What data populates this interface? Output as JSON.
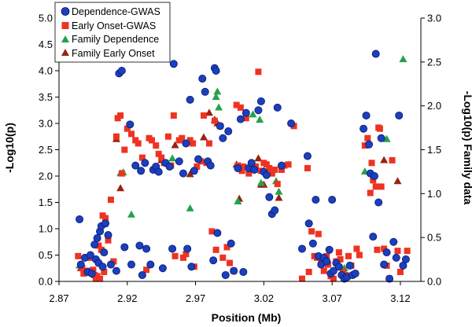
{
  "chart_data": {
    "type": "scatter",
    "xlabel": "Position (Mb)",
    "ylabel": "-Log10(p)",
    "y2label": "-Log10(p) Family data",
    "xlim": [
      2.87,
      3.135
    ],
    "ylim": [
      0,
      5
    ],
    "y2lim": [
      0,
      3
    ],
    "x_ticks": [
      "2.87",
      "2.92",
      "2.97",
      "3.02",
      "3.07",
      "3.12"
    ],
    "y_ticks": [
      "0.0",
      "0.5",
      "1.0",
      "1.5",
      "2.0",
      "2.5",
      "3.0",
      "3.5",
      "4.0",
      "4.5",
      "5.0"
    ],
    "y2_ticks": [
      "0.0",
      "0.5",
      "1.0",
      "1.5",
      "2.0",
      "2.5",
      "3.0"
    ],
    "grid": false,
    "legend_position": "top-left",
    "colors": {
      "dependence_gwas": "#1a3fbf",
      "early_onset_gwas": "#ee3322",
      "family_dependence": "#22a34a",
      "family_early_onset": "#992211"
    },
    "series": [
      {
        "name": "Dependence-GWAS",
        "marker": "circle",
        "axis": "left",
        "points": [
          [
            2.885,
            1.18
          ],
          [
            2.886,
            0.32
          ],
          [
            2.889,
            0.45
          ],
          [
            2.891,
            0.18
          ],
          [
            2.893,
            0.5
          ],
          [
            2.894,
            0.15
          ],
          [
            2.896,
            0.7
          ],
          [
            2.897,
            0.42
          ],
          [
            2.898,
            0.82
          ],
          [
            2.899,
            0.35
          ],
          [
            2.9,
            0.95
          ],
          [
            2.901,
            1.05
          ],
          [
            2.902,
            0.28
          ],
          [
            2.903,
            0.55
          ],
          [
            2.904,
            1.1
          ],
          [
            2.906,
            0.88
          ],
          [
            2.908,
            0.32
          ],
          [
            2.912,
            0.2
          ],
          [
            2.914,
            3.95
          ],
          [
            2.916,
            4.0
          ],
          [
            2.918,
            0.65
          ],
          [
            2.922,
            2.98
          ],
          [
            2.923,
            0.32
          ],
          [
            2.926,
            2.2
          ],
          [
            2.929,
            0.68
          ],
          [
            2.93,
            2.1
          ],
          [
            2.931,
            0.12
          ],
          [
            2.933,
            2.25
          ],
          [
            2.934,
            0.62
          ],
          [
            2.937,
            0.32
          ],
          [
            2.939,
            2.12
          ],
          [
            2.941,
            2.18
          ],
          [
            2.943,
            2.08
          ],
          [
            2.946,
            0.25
          ],
          [
            2.948,
            2.25
          ],
          [
            2.951,
            2.18
          ],
          [
            2.953,
            0.62
          ],
          [
            2.954,
            4.13
          ],
          [
            2.958,
            2.28
          ],
          [
            2.961,
            2.05
          ],
          [
            2.963,
            2.62
          ],
          [
            2.964,
            0.62
          ],
          [
            2.966,
            3.45
          ],
          [
            2.967,
            0.28
          ],
          [
            2.969,
            2.1
          ],
          [
            2.972,
            2.32
          ],
          [
            2.975,
            3.85
          ],
          [
            2.977,
            3.6
          ],
          [
            2.979,
            2.28
          ],
          [
            2.981,
            2.2
          ],
          [
            2.983,
            0.4
          ],
          [
            2.984,
            4.05
          ],
          [
            2.985,
            4.0
          ],
          [
            2.986,
            0.92
          ],
          [
            2.988,
            2.95
          ],
          [
            2.99,
            2.72
          ],
          [
            2.992,
            0.12
          ],
          [
            2.994,
            2.85
          ],
          [
            2.996,
            0.72
          ],
          [
            2.998,
            0.2
          ],
          [
            3.001,
            2.15
          ],
          [
            3.003,
            3.08
          ],
          [
            3.005,
            0.18
          ],
          [
            3.007,
            3.2
          ],
          [
            3.009,
            2.15
          ],
          [
            3.011,
            2.25
          ],
          [
            3.013,
            2.12
          ],
          [
            3.016,
            3.25
          ],
          [
            3.018,
            3.42
          ],
          [
            3.02,
            2.08
          ],
          [
            3.022,
            2.02
          ],
          [
            3.024,
            1.6
          ],
          [
            3.026,
            1.28
          ],
          [
            3.028,
            1.35
          ],
          [
            3.03,
            3.3
          ],
          [
            3.033,
            2.2
          ],
          [
            3.04,
            3.0
          ],
          [
            3.048,
            0.62
          ],
          [
            3.052,
            2.38
          ],
          [
            3.053,
            1.1
          ],
          [
            3.056,
            0.72
          ],
          [
            3.058,
            1.55
          ],
          [
            3.06,
            0.48
          ],
          [
            3.062,
            0.32
          ],
          [
            3.064,
            0.45
          ],
          [
            3.066,
            0.38
          ],
          [
            3.068,
            0.6
          ],
          [
            3.069,
            0.15
          ],
          [
            3.07,
            1.55
          ],
          [
            3.071,
            0.2
          ],
          [
            3.073,
            0.35
          ],
          [
            3.075,
            0.28
          ],
          [
            3.077,
            0.12
          ],
          [
            3.079,
            0.05
          ],
          [
            3.081,
            0.08
          ],
          [
            3.083,
            0.3
          ],
          [
            3.085,
            0.12
          ],
          [
            3.087,
            0.15
          ],
          [
            3.093,
            2.9
          ],
          [
            3.095,
            3.15
          ],
          [
            3.097,
            2.6
          ],
          [
            3.098,
            2.05
          ],
          [
            3.1,
            0.85
          ],
          [
            3.101,
            2.0
          ],
          [
            3.102,
            4.32
          ],
          [
            3.104,
            1.5
          ],
          [
            3.106,
            2.72
          ],
          [
            3.108,
            0.32
          ],
          [
            3.11,
            0.55
          ],
          [
            3.112,
            0.05
          ],
          [
            3.115,
            0.75
          ],
          [
            3.117,
            0.45
          ],
          [
            3.119,
            3.15
          ],
          [
            3.122,
            0.3
          ],
          [
            3.124,
            0.42
          ]
        ]
      },
      {
        "name": "Early Onset-GWAS",
        "marker": "square",
        "axis": "left",
        "points": [
          [
            2.884,
            0.48
          ],
          [
            2.887,
            0.25
          ],
          [
            2.888,
            0.15
          ],
          [
            2.891,
            0.2
          ],
          [
            2.893,
            0.45
          ],
          [
            2.895,
            0.22
          ],
          [
            2.896,
            0.12
          ],
          [
            2.897,
            0.05
          ],
          [
            2.898,
            0.1
          ],
          [
            2.899,
            0.68
          ],
          [
            2.9,
            0.05
          ],
          [
            2.901,
            0.6
          ],
          [
            2.902,
            1.25
          ],
          [
            2.903,
            0.18
          ],
          [
            2.904,
            1.2
          ],
          [
            2.906,
            0.78
          ],
          [
            2.908,
            1.55
          ],
          [
            2.91,
            0.38
          ],
          [
            2.912,
            2.75
          ],
          [
            2.913,
            3.1
          ],
          [
            2.915,
            3.15
          ],
          [
            2.916,
            2.05
          ],
          [
            2.918,
            2.5
          ],
          [
            2.92,
            2.9
          ],
          [
            2.923,
            2.8
          ],
          [
            2.926,
            2.68
          ],
          [
            2.928,
            2.62
          ],
          [
            2.931,
            2.35
          ],
          [
            2.934,
            0.22
          ],
          [
            2.936,
            2.72
          ],
          [
            2.938,
            2.68
          ],
          [
            2.941,
            2.58
          ],
          [
            2.943,
            2.42
          ],
          [
            2.945,
            2.35
          ],
          [
            2.947,
            2.25
          ],
          [
            2.95,
            2.75
          ],
          [
            2.952,
            2.2
          ],
          [
            2.954,
            3.15
          ],
          [
            2.955,
            0.48
          ],
          [
            2.958,
            2.68
          ],
          [
            2.96,
            2.72
          ],
          [
            2.961,
            0.45
          ],
          [
            2.963,
            0.52
          ],
          [
            2.966,
            2.68
          ],
          [
            2.968,
            2.62
          ],
          [
            2.969,
            0.28
          ],
          [
            2.971,
            2.18
          ],
          [
            2.974,
            2.28
          ],
          [
            2.976,
            3.15
          ],
          [
            2.978,
            2.25
          ],
          [
            2.98,
            2.62
          ],
          [
            2.982,
            0.95
          ],
          [
            2.984,
            3.05
          ],
          [
            2.985,
            0.6
          ],
          [
            2.988,
            2.95
          ],
          [
            2.99,
            0.45
          ],
          [
            2.993,
            0.65
          ],
          [
            2.995,
            0.35
          ],
          [
            2.998,
            0.2
          ],
          [
            3.0,
            3.35
          ],
          [
            3.001,
            2.2
          ],
          [
            3.003,
            3.3
          ],
          [
            3.004,
            2.1
          ],
          [
            3.005,
            2.18
          ],
          [
            3.007,
            3.1
          ],
          [
            3.009,
            2.05
          ],
          [
            3.012,
            2.12
          ],
          [
            3.014,
            2.18
          ],
          [
            3.016,
            3.98
          ],
          [
            3.018,
            2.1
          ],
          [
            3.02,
            2.25
          ],
          [
            3.022,
            2.22
          ],
          [
            3.024,
            2.15
          ],
          [
            3.026,
            2.05
          ],
          [
            3.028,
            2.12
          ],
          [
            3.03,
            1.85
          ],
          [
            3.033,
            2.12
          ],
          [
            3.035,
            2.2
          ],
          [
            3.038,
            2.22
          ],
          [
            3.042,
            2.95
          ],
          [
            3.048,
            0.05
          ],
          [
            3.052,
            2.15
          ],
          [
            3.053,
            0.18
          ],
          [
            3.055,
            0.95
          ],
          [
            3.057,
            0.48
          ],
          [
            3.059,
            0.45
          ],
          [
            3.06,
            0.9
          ],
          [
            3.062,
            0.4
          ],
          [
            3.064,
            0.2
          ],
          [
            3.066,
            0.48
          ],
          [
            3.067,
            0.32
          ],
          [
            3.069,
            0.1
          ],
          [
            3.071,
            0.05
          ],
          [
            3.073,
            0.38
          ],
          [
            3.075,
            0.55
          ],
          [
            3.076,
            0.42
          ],
          [
            3.078,
            0.18
          ],
          [
            3.08,
            0.12
          ],
          [
            3.082,
            0.48
          ],
          [
            3.084,
            0.3
          ],
          [
            3.088,
            0.62
          ],
          [
            3.09,
            0.5
          ],
          [
            3.094,
            2.58
          ],
          [
            3.096,
            2.72
          ],
          [
            3.098,
            1.68
          ],
          [
            3.099,
            2.25
          ],
          [
            3.1,
            1.92
          ],
          [
            3.102,
            1.8
          ],
          [
            3.103,
            0.6
          ],
          [
            3.104,
            2.92
          ],
          [
            3.105,
            2.9
          ],
          [
            3.106,
            1.8
          ],
          [
            3.108,
            0.62
          ],
          [
            3.11,
            0.3
          ],
          [
            3.112,
            0.05
          ],
          [
            3.114,
            2.3
          ],
          [
            3.118,
            0.58
          ],
          [
            3.12,
            0.18
          ],
          [
            3.125,
            0.58
          ]
        ]
      },
      {
        "name": "Family Dependence",
        "marker": "triangle",
        "axis": "right",
        "points": [
          [
            2.885,
            0.18
          ],
          [
            2.915,
            1.23
          ],
          [
            2.917,
            1.24
          ],
          [
            2.923,
            0.76
          ],
          [
            2.953,
            1.4
          ],
          [
            2.966,
            0.83
          ],
          [
            2.985,
            2.1
          ],
          [
            2.986,
            2.16
          ],
          [
            2.987,
            1.98
          ],
          [
            3.001,
            0.91
          ],
          [
            3.012,
            1.9
          ],
          [
            3.017,
            1.84
          ],
          [
            3.018,
            1.12
          ],
          [
            3.029,
            1.14
          ],
          [
            3.031,
            1.02
          ],
          [
            3.078,
            0.11
          ],
          [
            3.079,
            0.15
          ],
          [
            3.094,
            1.25
          ],
          [
            3.11,
            1.62
          ],
          [
            3.122,
            2.53
          ]
        ]
      },
      {
        "name": "Family Early Onset",
        "marker": "triangle",
        "axis": "right",
        "points": [
          [
            2.886,
            0.15
          ],
          [
            2.912,
            1.62
          ],
          [
            2.915,
            1.06
          ],
          [
            2.945,
            1.38
          ],
          [
            2.955,
            1.55
          ],
          [
            2.966,
            1.22
          ],
          [
            2.976,
            1.64
          ],
          [
            2.98,
            1.92
          ],
          [
            2.984,
            1.84
          ],
          [
            2.986,
            1.8
          ],
          [
            3.0,
            1.33
          ],
          [
            3.002,
            0.94
          ],
          [
            3.013,
            1.27
          ],
          [
            3.016,
            1.4
          ],
          [
            3.018,
            1.1
          ],
          [
            3.02,
            1.1
          ],
          [
            3.031,
            0.95
          ],
          [
            3.077,
            0.1
          ],
          [
            3.08,
            0.08
          ],
          [
            3.108,
            1.38
          ],
          [
            3.118,
            1.14
          ]
        ]
      }
    ]
  }
}
